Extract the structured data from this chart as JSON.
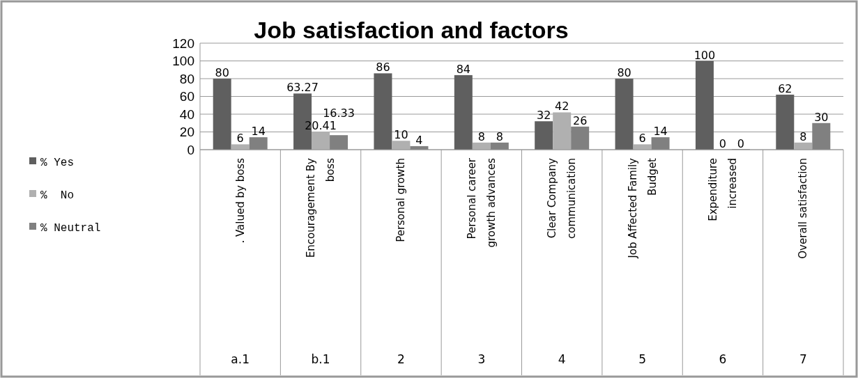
{
  "chart_data": {
    "type": "bar",
    "title": "Job satisfaction and factors",
    "categories": [
      ". Valued by boss",
      "Encouragement By\nboss",
      "Personal growth",
      "Personal career\ngrowth advances",
      "Clear Company\ncommunication",
      "Job Affected Family\nBudget",
      "Expenditure\nincreased",
      "Overall satisfaction"
    ],
    "series": [
      {
        "name": "% Yes",
        "color": "#5f5f5f",
        "values": [
          80,
          63.27,
          86,
          84,
          32,
          80,
          100,
          62
        ]
      },
      {
        "name": "%  No",
        "color": "#b0b0b0",
        "values": [
          6,
          20.41,
          10,
          8,
          42,
          6,
          0,
          8
        ]
      },
      {
        "name": "% Neutral",
        "color": "#808080",
        "values": [
          14,
          16.33,
          4,
          8,
          26,
          14,
          0,
          30
        ]
      }
    ],
    "annotations": [
      "a.1",
      "b.1",
      "2",
      "3",
      "4",
      "5",
      "6",
      "7"
    ],
    "ylim": [
      0,
      120
    ],
    "yticks": [
      0,
      20,
      40,
      60,
      80,
      100,
      120
    ],
    "grid": "y",
    "legend": "left",
    "data_labels": true
  }
}
